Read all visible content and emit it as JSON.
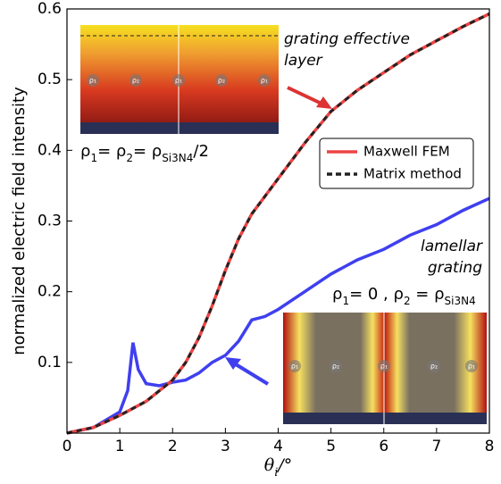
{
  "chart_data": {
    "type": "line",
    "y_label": "normalized electric field intensity",
    "x_label": [
      "θ",
      "i",
      "/°"
    ],
    "xlim": [
      0,
      8
    ],
    "xticks": [
      0,
      1,
      2,
      3,
      4,
      5,
      6,
      7,
      8
    ],
    "ylim": [
      0,
      0.6
    ],
    "yticks": [
      0.1,
      0.2,
      0.3,
      0.4,
      0.5,
      0.6
    ],
    "series": [
      {
        "name": "Maxwell FEM",
        "color": "#ee4444",
        "style": "solid",
        "x": [
          0,
          0.5,
          1,
          1.5,
          2,
          2.25,
          2.5,
          2.75,
          3,
          3.25,
          3.5,
          4,
          4.5,
          5,
          5.5,
          6,
          6.5,
          7,
          7.5,
          8
        ],
        "values": [
          0,
          0.008,
          0.025,
          0.045,
          0.075,
          0.1,
          0.135,
          0.18,
          0.23,
          0.275,
          0.31,
          0.36,
          0.41,
          0.455,
          0.485,
          0.51,
          0.535,
          0.555,
          0.575,
          0.593
        ]
      },
      {
        "name": "Matrix method",
        "color": "#222222",
        "style": "dashed",
        "x": [
          0,
          0.5,
          1,
          1.5,
          2,
          2.25,
          2.5,
          2.75,
          3,
          3.25,
          3.5,
          4,
          4.5,
          5,
          5.5,
          6,
          6.5,
          7,
          7.5,
          8
        ],
        "values": [
          0,
          0.008,
          0.025,
          0.045,
          0.075,
          0.1,
          0.135,
          0.18,
          0.23,
          0.275,
          0.31,
          0.36,
          0.41,
          0.455,
          0.485,
          0.51,
          0.535,
          0.555,
          0.575,
          0.593
        ]
      },
      {
        "color": "#3f3ff0",
        "style": "solid",
        "x": [
          0,
          0.5,
          1,
          1.15,
          1.25,
          1.35,
          1.5,
          1.75,
          2,
          2.25,
          2.5,
          2.75,
          3,
          3.25,
          3.5,
          3.75,
          4,
          4.5,
          5,
          5.5,
          6,
          6.5,
          7,
          7.5,
          8
        ],
        "values": [
          0,
          0.008,
          0.03,
          0.06,
          0.128,
          0.09,
          0.07,
          0.067,
          0.072,
          0.075,
          0.085,
          0.1,
          0.11,
          0.13,
          0.16,
          0.165,
          0.175,
          0.2,
          0.225,
          0.245,
          0.26,
          0.28,
          0.295,
          0.315,
          0.332
        ]
      }
    ],
    "annotations": {
      "effective": [
        "grating effective",
        "layer"
      ],
      "lamellar": [
        "lamellar",
        "grating"
      ],
      "rho_top": [
        "ρ",
        "1",
        "= ρ",
        "2",
        "= ρ",
        "Si3N4",
        "/2"
      ],
      "rho_bottom": [
        "ρ",
        "1",
        "= 0 , ρ",
        "2",
        " = ρ",
        "Si3N4"
      ]
    },
    "inset_top_labels": [
      "ρ₁",
      "ρ₂",
      "ρ₁",
      "ρ₂",
      "ρ₁"
    ],
    "inset_bottom_labels": [
      "ρ₁",
      "ρ₂",
      "ρ₁",
      "ρ₂",
      "ρ₁"
    ]
  }
}
